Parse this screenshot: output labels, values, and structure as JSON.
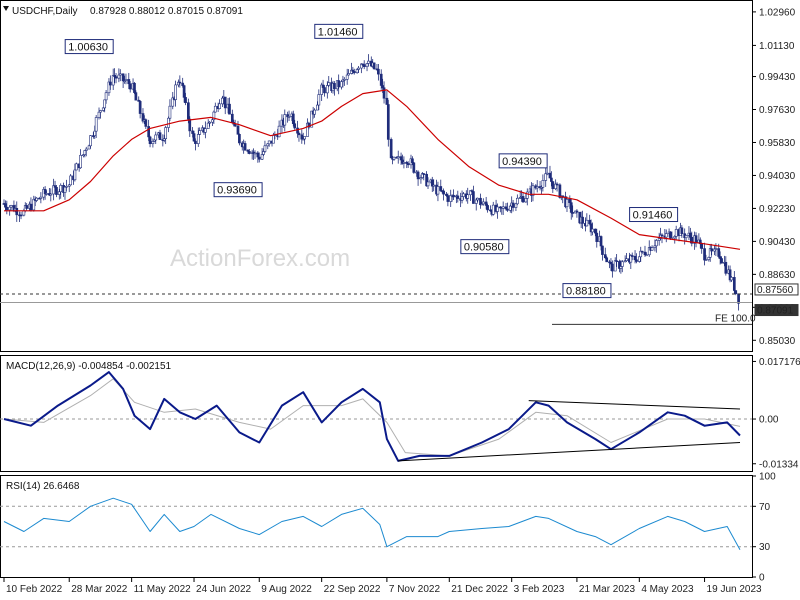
{
  "chart_data": [
    {
      "type": "candlestick",
      "title": "USDCHF,Daily",
      "ohlc_text": "0.87928 0.88012 0.87015 0.87091",
      "ylim": [
        0.845,
        1.035
      ],
      "y_ticks": [
        "1.02960",
        "1.01130",
        "0.99430",
        "0.97630",
        "0.95830",
        "0.94030",
        "0.92230",
        "0.90430",
        "0.88630",
        "0.86830",
        "0.85030"
      ],
      "x_ticks": [
        "10 Feb 2022",
        "28 Mar 2022",
        "11 May 2022",
        "24 Jun 2022",
        "9 Aug 2022",
        "22 Sep 2022",
        "7 Nov 2022",
        "21 Dec 2022",
        "3 Feb 2023",
        "21 Mar 2023",
        "4 May 2023",
        "19 Jun 2023"
      ],
      "annotations": [
        {
          "text": "1.00630",
          "price": 1.0063,
          "date": "2022-04-28"
        },
        {
          "text": "1.01460",
          "price": 1.0146,
          "date": "2022-10-21"
        },
        {
          "text": "0.93690",
          "price": 0.9369,
          "date": "2022-08-11"
        },
        {
          "text": "0.94390",
          "price": 0.9439,
          "date": "2023-02-28"
        },
        {
          "text": "0.90580",
          "price": 0.9058,
          "date": "2023-02-01"
        },
        {
          "text": "0.91460",
          "price": 0.9146,
          "date": "2023-05-31"
        },
        {
          "text": "0.88180",
          "price": 0.8818,
          "date": "2023-04-14"
        }
      ],
      "price_labels": [
        "0.87560",
        "0.87091"
      ],
      "reference_lines": [
        {
          "value": 0.8756,
          "style": "dashed"
        },
        {
          "value": 0.87091,
          "style": "solid"
        }
      ],
      "fe_label": "FE 100.0",
      "fe_value": 0.859,
      "moving_average_color": "#cc0000",
      "candle_color": "#1f2c7a",
      "close_series": [
        [
          "2022-02-10",
          0.925
        ],
        [
          "2022-02-24",
          0.92
        ],
        [
          "2022-03-10",
          0.93
        ],
        [
          "2022-03-28",
          0.935
        ],
        [
          "2022-04-12",
          0.96
        ],
        [
          "2022-04-28",
          0.995
        ],
        [
          "2022-05-11",
          0.99
        ],
        [
          "2022-05-24",
          0.96
        ],
        [
          "2022-06-03",
          0.962
        ],
        [
          "2022-06-14",
          0.995
        ],
        [
          "2022-06-24",
          0.958
        ],
        [
          "2022-07-06",
          0.97
        ],
        [
          "2022-07-14",
          0.985
        ],
        [
          "2022-07-26",
          0.96
        ],
        [
          "2022-08-09",
          0.95
        ],
        [
          "2022-08-17",
          0.958
        ],
        [
          "2022-08-31",
          0.975
        ],
        [
          "2022-09-09",
          0.96
        ],
        [
          "2022-09-22",
          0.987
        ],
        [
          "2022-10-06",
          0.99
        ],
        [
          "2022-10-21",
          1.003
        ],
        [
          "2022-10-31",
          0.998
        ],
        [
          "2022-11-07",
          0.98
        ],
        [
          "2022-11-10",
          0.947
        ],
        [
          "2022-11-21",
          0.95
        ],
        [
          "2022-12-01",
          0.94
        ],
        [
          "2022-12-13",
          0.932
        ],
        [
          "2022-12-21",
          0.928
        ],
        [
          "2023-01-04",
          0.93
        ],
        [
          "2023-01-13",
          0.925
        ],
        [
          "2023-01-25",
          0.92
        ],
        [
          "2023-02-03",
          0.925
        ],
        [
          "2023-02-15",
          0.93
        ],
        [
          "2023-03-01",
          0.94
        ],
        [
          "2023-03-14",
          0.925
        ],
        [
          "2023-03-21",
          0.918
        ],
        [
          "2023-04-03",
          0.91
        ],
        [
          "2023-04-14",
          0.89
        ],
        [
          "2023-04-25",
          0.893
        ],
        [
          "2023-05-04",
          0.896
        ],
        [
          "2023-05-17",
          0.905
        ],
        [
          "2023-05-31",
          0.91
        ],
        [
          "2023-06-14",
          0.905
        ],
        [
          "2023-06-19",
          0.897
        ],
        [
          "2023-06-30",
          0.898
        ],
        [
          "2023-07-10",
          0.88
        ],
        [
          "2023-07-14",
          0.871
        ]
      ],
      "ma_series": [
        [
          "2022-02-10",
          0.921
        ],
        [
          "2022-03-10",
          0.921
        ],
        [
          "2022-03-28",
          0.927
        ],
        [
          "2022-04-12",
          0.937
        ],
        [
          "2022-04-28",
          0.951
        ],
        [
          "2022-05-11",
          0.96
        ],
        [
          "2022-05-24",
          0.966
        ],
        [
          "2022-06-14",
          0.97
        ],
        [
          "2022-07-06",
          0.972
        ],
        [
          "2022-07-26",
          0.968
        ],
        [
          "2022-08-17",
          0.962
        ],
        [
          "2022-09-09",
          0.966
        ],
        [
          "2022-09-22",
          0.97
        ],
        [
          "2022-10-06",
          0.978
        ],
        [
          "2022-10-21",
          0.985
        ],
        [
          "2022-11-07",
          0.987
        ],
        [
          "2022-11-21",
          0.978
        ],
        [
          "2022-12-13",
          0.96
        ],
        [
          "2023-01-04",
          0.945
        ],
        [
          "2023-01-25",
          0.935
        ],
        [
          "2023-02-15",
          0.93
        ],
        [
          "2023-03-01",
          0.93
        ],
        [
          "2023-03-21",
          0.927
        ],
        [
          "2023-04-14",
          0.917
        ],
        [
          "2023-05-04",
          0.908
        ],
        [
          "2023-05-31",
          0.905
        ],
        [
          "2023-06-19",
          0.903
        ],
        [
          "2023-07-14",
          0.9
        ]
      ]
    },
    {
      "type": "line",
      "title": "MACD(12,26,9) -0.004854 -0.002151",
      "ylim": [
        -0.0155,
        0.0185
      ],
      "y_ticks": [
        "0.017176",
        "0.00",
        "-0.01334"
      ],
      "colors": {
        "macd": "#0a1a8a",
        "signal": "#b0b0b0"
      },
      "series": [
        {
          "values": [
            [
              "2022-02-10",
              0.0
            ],
            [
              "2022-03-01",
              -0.002
            ],
            [
              "2022-03-20",
              0.004
            ],
            [
              "2022-04-12",
              0.01
            ],
            [
              "2022-04-25",
              0.014
            ],
            [
              "2022-05-05",
              0.009
            ],
            [
              "2022-05-13",
              0.001
            ],
            [
              "2022-05-24",
              -0.003
            ],
            [
              "2022-06-03",
              0.006
            ],
            [
              "2022-06-14",
              0.002
            ],
            [
              "2022-06-25",
              0.0
            ],
            [
              "2022-07-10",
              0.004
            ],
            [
              "2022-07-26",
              -0.004
            ],
            [
              "2022-08-09",
              -0.007
            ],
            [
              "2022-08-25",
              0.004
            ],
            [
              "2022-09-09",
              0.008
            ],
            [
              "2022-09-22",
              -0.001
            ],
            [
              "2022-10-06",
              0.005
            ],
            [
              "2022-10-21",
              0.009
            ],
            [
              "2022-11-02",
              0.005
            ],
            [
              "2022-11-07",
              -0.006
            ],
            [
              "2022-11-15",
              -0.0125
            ],
            [
              "2022-11-30",
              -0.011
            ],
            [
              "2022-12-21",
              -0.011
            ],
            [
              "2023-01-13",
              -0.007
            ],
            [
              "2023-02-01",
              -0.003
            ],
            [
              "2023-02-20",
              0.005
            ],
            [
              "2023-03-01",
              0.004
            ],
            [
              "2023-03-14",
              -0.001
            ],
            [
              "2023-04-03",
              -0.006
            ],
            [
              "2023-04-14",
              -0.009
            ],
            [
              "2023-05-04",
              -0.004
            ],
            [
              "2023-05-24",
              0.002
            ],
            [
              "2023-06-05",
              0.001
            ],
            [
              "2023-06-19",
              -0.002
            ],
            [
              "2023-07-05",
              -0.001
            ],
            [
              "2023-07-14",
              -0.0049
            ]
          ]
        },
        {
          "values": [
            [
              "2022-02-10",
              0.0
            ],
            [
              "2022-03-10",
              -0.001
            ],
            [
              "2022-04-12",
              0.007
            ],
            [
              "2022-04-28",
              0.012
            ],
            [
              "2022-05-13",
              0.005
            ],
            [
              "2022-06-03",
              0.002
            ],
            [
              "2022-06-25",
              0.003
            ],
            [
              "2022-07-26",
              -0.001
            ],
            [
              "2022-08-17",
              -0.003
            ],
            [
              "2022-09-09",
              0.004
            ],
            [
              "2022-10-06",
              0.004
            ],
            [
              "2022-10-21",
              0.006
            ],
            [
              "2022-11-07",
              -0.001
            ],
            [
              "2022-11-20",
              -0.01
            ],
            [
              "2022-12-21",
              -0.011
            ],
            [
              "2023-01-25",
              -0.006
            ],
            [
              "2023-02-20",
              0.002
            ],
            [
              "2023-03-14",
              0.001
            ],
            [
              "2023-04-14",
              -0.007
            ],
            [
              "2023-05-24",
              0.0
            ],
            [
              "2023-06-19",
              0.0
            ],
            [
              "2023-07-14",
              -0.0022
            ]
          ]
        }
      ],
      "trend_lines": [
        [
          [
            "2023-02-15",
            0.0055
          ],
          [
            "2023-07-14",
            0.003
          ]
        ],
        [
          [
            "2022-11-15",
            -0.0125
          ],
          [
            "2023-07-14",
            -0.007
          ]
        ]
      ]
    },
    {
      "type": "line",
      "title": "RSI(14) 26.6468",
      "ylim": [
        0,
        100
      ],
      "y_ticks": [
        "100",
        "70",
        "30",
        "0"
      ],
      "dashed_levels": [
        70,
        30
      ],
      "color": "#1c8ad0",
      "series": [
        {
          "values": [
            [
              "2022-02-10",
              55
            ],
            [
              "2022-02-24",
              45
            ],
            [
              "2022-03-10",
              58
            ],
            [
              "2022-03-28",
              55
            ],
            [
              "2022-04-12",
              70
            ],
            [
              "2022-04-28",
              78
            ],
            [
              "2022-05-11",
              72
            ],
            [
              "2022-05-24",
              45
            ],
            [
              "2022-06-03",
              62
            ],
            [
              "2022-06-14",
              45
            ],
            [
              "2022-06-24",
              50
            ],
            [
              "2022-07-06",
              62
            ],
            [
              "2022-07-26",
              48
            ],
            [
              "2022-08-09",
              42
            ],
            [
              "2022-08-25",
              55
            ],
            [
              "2022-09-09",
              60
            ],
            [
              "2022-09-22",
              50
            ],
            [
              "2022-10-06",
              62
            ],
            [
              "2022-10-21",
              68
            ],
            [
              "2022-11-02",
              52
            ],
            [
              "2022-11-07",
              30
            ],
            [
              "2022-11-21",
              40
            ],
            [
              "2022-12-13",
              40
            ],
            [
              "2022-12-21",
              45
            ],
            [
              "2023-01-13",
              48
            ],
            [
              "2023-02-01",
              50
            ],
            [
              "2023-02-20",
              60
            ],
            [
              "2023-03-01",
              58
            ],
            [
              "2023-03-21",
              45
            ],
            [
              "2023-04-03",
              40
            ],
            [
              "2023-04-14",
              32
            ],
            [
              "2023-05-04",
              48
            ],
            [
              "2023-05-24",
              60
            ],
            [
              "2023-06-05",
              55
            ],
            [
              "2023-06-19",
              45
            ],
            [
              "2023-07-05",
              50
            ],
            [
              "2023-07-14",
              27
            ]
          ]
        }
      ]
    }
  ],
  "watermark": "ActionForex.com"
}
